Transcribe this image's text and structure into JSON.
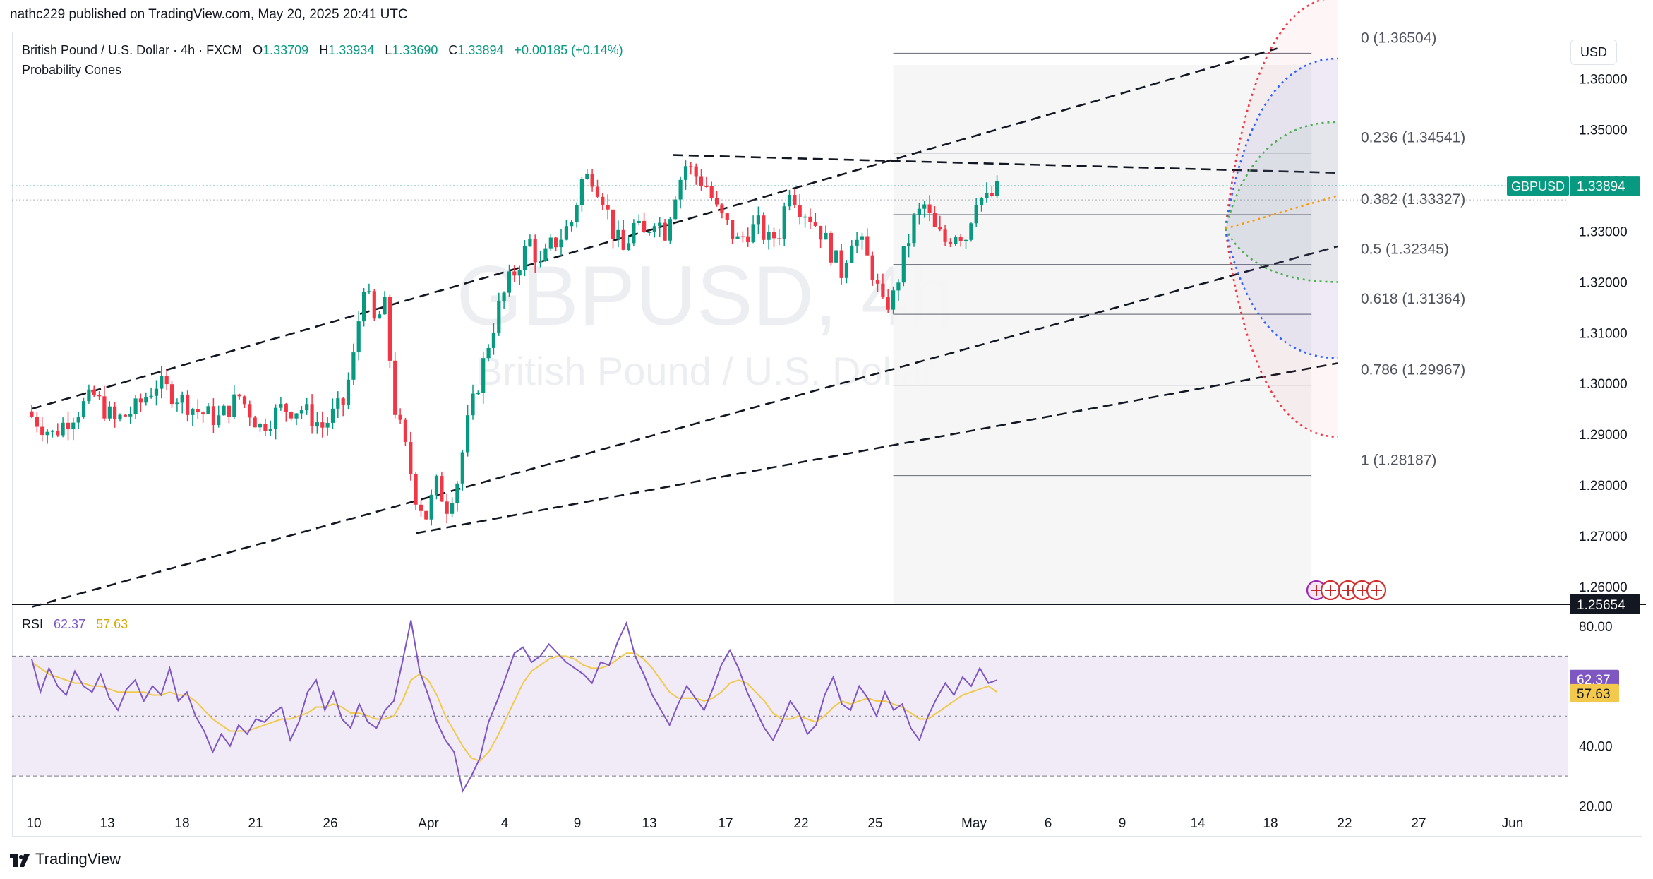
{
  "publisher": "nathc229 published on TradingView.com, May 20, 2025 20:41 UTC",
  "legend": {
    "symbol": "British Pound / U.S. Dollar · 4h · FXCM",
    "o_label": "O",
    "o": "1.33709",
    "h_label": "H",
    "h": "1.33934",
    "l_label": "L",
    "l": "1.33690",
    "c_label": "C",
    "c": "1.33894",
    "change": "+0.00185 (+0.14%)",
    "indicator": "Probability Cones"
  },
  "currency_button": "USD",
  "watermark": {
    "ticker": "GBPUSD, 4h",
    "name": "British Pound / U.S. Dollar"
  },
  "rsi_legend": {
    "label": "RSI",
    "rsi": "62.37",
    "ma": "57.63"
  },
  "footer": "TradingView",
  "colors": {
    "up": "#089981",
    "down": "#f23645",
    "rsi_line": "#7e57c2",
    "rsi_ma": "#f2c94c",
    "rsi_band": "#ede7f6",
    "cone_red": "#f23645",
    "cone_blue": "#2962ff",
    "cone_green": "#4caf50",
    "cone_orange": "#ff9800",
    "fib_bg": "#f5f5f5"
  },
  "chart_data": [
    {
      "type": "candlestick",
      "symbol": "GBPUSD",
      "timeframe": "4h",
      "x_ticks": [
        "10",
        "13",
        "18",
        "21",
        "26",
        "Apr",
        "4",
        "9",
        "13",
        "17",
        "22",
        "25",
        "May",
        "6",
        "9",
        "14",
        "18",
        "22",
        "27",
        "Jun"
      ],
      "y_ticks": [
        "1.36000",
        "1.35000",
        "1.34000",
        "1.33000",
        "1.32000",
        "1.31000",
        "1.30000",
        "1.29000",
        "1.28000",
        "1.27000",
        "1.26000"
      ],
      "ylim": [
        1.2565,
        1.369
      ],
      "last_price_label": {
        "symbol": "GBPUSD",
        "value": "1.33894"
      },
      "crosshair_price_label": "1.25654",
      "close_path": [
        [
          0,
          1.2935
        ],
        [
          20,
          1.29
        ],
        [
          40,
          1.294
        ],
        [
          60,
          1.2975
        ],
        [
          80,
          1.2925
        ],
        [
          100,
          1.295
        ],
        [
          120,
          1.3
        ],
        [
          140,
          1.2975
        ],
        [
          160,
          1.2945
        ],
        [
          180,
          1.293
        ],
        [
          200,
          1.2975
        ],
        [
          220,
          1.2915
        ],
        [
          240,
          1.295
        ],
        [
          260,
          1.295
        ],
        [
          280,
          1.2915
        ],
        [
          300,
          1.296
        ],
        [
          310,
          1.305
        ],
        [
          320,
          1.32
        ],
        [
          330,
          1.312
        ],
        [
          340,
          1.315
        ],
        [
          350,
          1.295
        ],
        [
          360,
          1.287
        ],
        [
          370,
          1.278
        ],
        [
          380,
          1.274
        ],
        [
          390,
          1.28
        ],
        [
          400,
          1.276
        ],
        [
          410,
          1.281
        ],
        [
          420,
          1.292
        ],
        [
          430,
          1.3
        ],
        [
          440,
          1.308
        ],
        [
          450,
          1.315
        ],
        [
          460,
          1.32
        ],
        [
          470,
          1.324
        ],
        [
          480,
          1.328
        ],
        [
          490,
          1.323
        ],
        [
          500,
          1.327
        ],
        [
          510,
          1.329
        ],
        [
          520,
          1.332
        ],
        [
          530,
          1.34
        ],
        [
          540,
          1.341
        ],
        [
          550,
          1.337
        ],
        [
          560,
          1.33
        ],
        [
          570,
          1.326
        ],
        [
          580,
          1.331
        ],
        [
          590,
          1.329
        ],
        [
          600,
          1.333
        ],
        [
          610,
          1.33
        ],
        [
          620,
          1.338
        ],
        [
          630,
          1.343
        ],
        [
          640,
          1.341
        ],
        [
          650,
          1.339
        ],
        [
          660,
          1.334
        ],
        [
          670,
          1.331
        ],
        [
          680,
          1.328
        ],
        [
          690,
          1.33
        ],
        [
          700,
          1.331
        ],
        [
          710,
          1.328
        ],
        [
          720,
          1.33
        ],
        [
          730,
          1.339
        ],
        [
          740,
          1.335
        ],
        [
          750,
          1.333
        ],
        [
          760,
          1.33
        ],
        [
          770,
          1.326
        ],
        [
          780,
          1.322
        ],
        [
          790,
          1.329
        ],
        [
          800,
          1.327
        ],
        [
          810,
          1.322
        ],
        [
          820,
          1.315
        ],
        [
          830,
          1.317
        ],
        [
          840,
          1.325
        ],
        [
          850,
          1.332
        ],
        [
          860,
          1.335
        ],
        [
          870,
          1.33
        ],
        [
          880,
          1.328
        ],
        [
          890,
          1.33
        ],
        [
          900,
          1.329
        ],
        [
          910,
          1.337
        ],
        [
          920,
          1.336
        ],
        [
          930,
          1.338
        ]
      ],
      "fib_levels": [
        {
          "label": "0 (1.36504)",
          "price": 1.36504
        },
        {
          "label": "0.236 (1.34541)",
          "price": 1.34541
        },
        {
          "label": "0.382 (1.33327)",
          "price": 1.33327
        },
        {
          "label": "0.5 (1.32345)",
          "price": 1.32345
        },
        {
          "label": "0.618 (1.31364)",
          "price": 1.31364
        },
        {
          "label": "0.786 (1.29967)",
          "price": 1.29967
        },
        {
          "label": "1 (1.28187)",
          "price": 1.28187
        }
      ],
      "trendlines": [
        {
          "from": [
            0,
            1.295
          ],
          "to": [
            1200,
            1.366
          ]
        },
        {
          "from": [
            0,
            1.256
          ],
          "to": [
            1258,
            1.327
          ]
        },
        {
          "from": [
            370,
            1.2705
          ],
          "to": [
            1258,
            1.304
          ]
        },
        {
          "from": [
            618,
            1.345
          ],
          "to": [
            1258,
            1.3415
          ]
        }
      ],
      "probability_cones": {
        "start": [
          1150,
          1.3305
        ],
        "end_x": 1258,
        "red": {
          "upper": 1.376,
          "lower": 1.2895
        },
        "blue": {
          "upper": 1.364,
          "lower": 1.305
        },
        "green": {
          "upper": 1.3515,
          "lower": 1.32
        },
        "mean": 1.337
      }
    },
    {
      "type": "line",
      "name": "RSI",
      "y_ticks": [
        "80.00",
        "40.00",
        "20.00"
      ],
      "ylim": [
        18,
        84
      ],
      "bands": [
        70,
        30
      ],
      "series": [
        {
          "name": "RSI",
          "value_label": "62.37",
          "values": [
            69,
            58,
            66,
            60,
            57,
            65,
            60,
            58,
            64,
            56,
            52,
            59,
            62,
            55,
            60,
            57,
            66,
            55,
            58,
            50,
            45,
            38,
            44,
            40,
            47,
            44,
            49,
            48,
            51,
            53,
            42,
            48,
            58,
            62,
            52,
            58,
            49,
            46,
            54,
            48,
            46,
            52,
            55,
            68,
            82,
            65,
            57,
            48,
            42,
            38,
            25,
            30,
            36,
            48,
            55,
            63,
            71,
            73,
            68,
            70,
            74,
            71,
            68,
            66,
            64,
            61,
            68,
            67,
            75,
            81,
            70,
            64,
            57,
            52,
            47,
            54,
            60,
            56,
            52,
            59,
            67,
            72,
            66,
            58,
            52,
            46,
            42,
            48,
            55,
            51,
            44,
            47,
            57,
            63,
            54,
            52,
            60,
            56,
            50,
            58,
            52,
            54,
            46,
            42,
            50,
            56,
            61,
            57,
            63,
            60,
            66,
            61,
            62
          ]
        },
        {
          "name": "MA",
          "value_label": "57.63",
          "values": [
            68,
            66,
            64,
            63,
            62,
            61,
            61,
            60,
            60,
            59,
            58,
            58,
            58,
            58,
            57,
            57,
            58,
            57,
            57,
            55,
            52,
            49,
            47,
            45,
            45,
            45,
            46,
            47,
            48,
            49,
            49,
            50,
            51,
            53,
            53,
            54,
            53,
            51,
            51,
            50,
            49,
            49,
            50,
            55,
            62,
            64,
            62,
            57,
            50,
            45,
            40,
            36,
            35,
            38,
            43,
            49,
            55,
            61,
            65,
            67,
            69,
            70,
            70,
            69,
            67,
            66,
            66,
            67,
            69,
            71,
            71,
            69,
            66,
            62,
            58,
            56,
            56,
            56,
            55,
            56,
            58,
            61,
            62,
            61,
            58,
            55,
            51,
            49,
            49,
            50,
            49,
            48,
            50,
            53,
            55,
            54,
            55,
            56,
            55,
            55,
            54,
            53,
            51,
            49,
            49,
            51,
            53,
            55,
            57,
            58,
            59,
            60,
            58
          ]
        }
      ]
    }
  ]
}
